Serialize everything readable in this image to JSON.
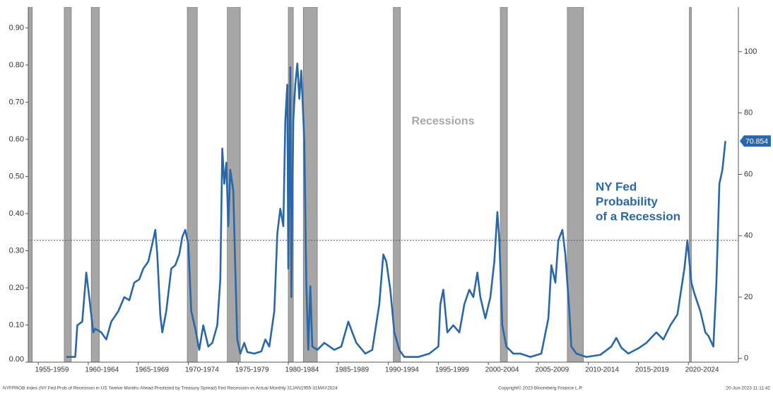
{
  "chart_data": {
    "type": "line",
    "x": [
      1957.8,
      1958.7,
      1958.9,
      1959.4,
      1959.8,
      1960.1,
      1960.5,
      1960.7,
      1961.3,
      1961.8,
      1962.3,
      1963.0,
      1963.6,
      1964.1,
      1964.6,
      1965.1,
      1965.5,
      1966.0,
      1966.4,
      1966.7,
      1966.9,
      1967.2,
      1967.4,
      1967.8,
      1968.3,
      1968.7,
      1969.1,
      1969.4,
      1969.7,
      1970.0,
      1970.3,
      1970.7,
      1971.1,
      1971.5,
      1972.0,
      1972.4,
      1972.9,
      1973.2,
      1973.4,
      1973.6,
      1973.8,
      1974.0,
      1974.2,
      1974.5,
      1974.7,
      1974.9,
      1975.2,
      1975.6,
      1975.9,
      1976.6,
      1977.3,
      1977.7,
      1978.1,
      1978.6,
      1978.9,
      1979.2,
      1979.5,
      1979.7,
      1979.9,
      1980.0,
      1980.2,
      1980.3,
      1980.5,
      1980.7,
      1980.9,
      1981.1,
      1981.3,
      1981.6,
      1981.8,
      1982.0,
      1982.2,
      1982.4,
      1982.9,
      1983.6,
      1984.6,
      1985.3,
      1986.0,
      1986.4,
      1986.8,
      1987.7,
      1988.4,
      1989.1,
      1989.5,
      1989.8,
      1990.2,
      1990.6,
      1991.1,
      1991.6,
      1993.0,
      1994.1,
      1995.0,
      1995.2,
      1995.5,
      1995.9,
      1996.5,
      1997.1,
      1997.6,
      1998.1,
      1998.5,
      1998.9,
      1999.2,
      1999.7,
      2000.2,
      2000.6,
      2000.9,
      2001.1,
      2001.4,
      2001.8,
      2002.5,
      2003.2,
      2004.2,
      2005.3,
      2006.0,
      2006.3,
      2006.7,
      2007.0,
      2007.4,
      2007.7,
      2008.1,
      2008.3,
      2008.8,
      2009.8,
      2011.2,
      2012.3,
      2012.8,
      2013.3,
      2014.0,
      2015.1,
      2015.8,
      2016.8,
      2017.5,
      2018.2,
      2018.9,
      2019.6,
      2019.9,
      2020.3,
      2020.6,
      2021.2,
      2021.7,
      2022.0,
      2022.5,
      2022.8,
      2023.1,
      2023.4,
      2023.7
    ],
    "series": [
      {
        "name": "NY Fed Probability of a Recession",
        "label_lines": [
          "NY Fed",
          "Probability",
          "of a Recession"
        ],
        "color": "#2a67a8",
        "axis": "y2",
        "values": [
          0.5,
          0.5,
          10.8,
          12,
          28,
          20,
          8.5,
          9.7,
          8.5,
          6.2,
          12,
          15.4,
          20,
          19,
          24.7,
          25.8,
          29.3,
          31.6,
          37.3,
          41.9,
          33.9,
          14.3,
          8.5,
          15.4,
          29.3,
          30.4,
          33.9,
          39.6,
          41.9,
          37.3,
          15.4,
          9.7,
          2.8,
          10.8,
          3.9,
          5.1,
          10.8,
          25.8,
          68.4,
          56.9,
          63.8,
          43.1,
          61.5,
          54.6,
          29.3,
          6.2,
          1.6,
          5.1,
          2.1,
          1.6,
          2.3,
          6.2,
          3.9,
          15.4,
          40.8,
          48.8,
          43.1,
          77.6,
          89.2,
          29.3,
          94.9,
          20,
          77.6,
          89.2,
          96.1,
          84.6,
          93.8,
          70.7,
          24.7,
          2.8,
          23.5,
          3.9,
          2.8,
          5.1,
          2.8,
          3.9,
          12,
          8.5,
          5.1,
          1.6,
          2.8,
          17.7,
          33.9,
          31.6,
          22.4,
          8.5,
          2.8,
          0.5,
          0.5,
          1.6,
          3.9,
          17.7,
          22.4,
          8.5,
          10.8,
          8.5,
          17.7,
          22.4,
          20,
          28,
          20,
          13.1,
          20,
          31.6,
          47.7,
          38.5,
          10.8,
          3.9,
          1.6,
          1.6,
          0.5,
          1.6,
          13.1,
          30.4,
          24.7,
          38.5,
          41.9,
          33.9,
          15.4,
          3.9,
          1.6,
          0.5,
          1.2,
          3.9,
          6.7,
          3.5,
          1.6,
          3.5,
          5.1,
          8.5,
          6.2,
          10.8,
          14.3,
          29.3,
          38.5,
          24.7,
          21.2,
          15.4,
          8.5,
          7.4,
          3.9,
          24.7,
          56.9,
          61.5,
          70.854
        ]
      }
    ],
    "recessions_label": "Recessions",
    "recessions": [
      [
        1953.6,
        1954.4
      ],
      [
        1957.6,
        1958.3
      ],
      [
        1960.3,
        1961.1
      ],
      [
        1969.9,
        1970.9
      ],
      [
        1973.9,
        1975.2
      ],
      [
        1980.0,
        1980.5
      ],
      [
        1981.5,
        1982.9
      ],
      [
        1990.5,
        1991.2
      ],
      [
        2001.2,
        2001.9
      ],
      [
        2007.9,
        2009.5
      ],
      [
        2020.1,
        2020.3
      ]
    ],
    "reference_line": {
      "value": 38.5,
      "axis": "y2"
    },
    "xlim": [
      1954,
      2025
    ],
    "xticks": [
      {
        "value": 1955,
        "label": "1955-1959"
      },
      {
        "value": 1960,
        "label": "1960-1964"
      },
      {
        "value": 1965,
        "label": "1965-1969"
      },
      {
        "value": 1970,
        "label": "1970-1974"
      },
      {
        "value": 1975,
        "label": "1975-1979"
      },
      {
        "value": 1980,
        "label": "1980-1984"
      },
      {
        "value": 1985,
        "label": "1985-1989"
      },
      {
        "value": 1990,
        "label": "1990-1994"
      },
      {
        "value": 1995,
        "label": "1995-1999"
      },
      {
        "value": 2000,
        "label": "2000-2004"
      },
      {
        "value": 2005,
        "label": "2005-2009"
      },
      {
        "value": 2010,
        "label": "2010-2014"
      },
      {
        "value": 2015,
        "label": "2015-2019"
      },
      {
        "value": 2020,
        "label": "2020-2024"
      }
    ],
    "ylim": [
      0,
      0.956
    ],
    "yticks": [
      {
        "value": 0,
        "label": "0.00"
      },
      {
        "value": 0.1,
        "label": "0.10"
      },
      {
        "value": 0.2,
        "label": "0.20"
      },
      {
        "value": 0.3,
        "label": "0.30"
      },
      {
        "value": 0.4,
        "label": "0.40"
      },
      {
        "value": 0.5,
        "label": "0.50"
      },
      {
        "value": 0.6,
        "label": "0.60"
      },
      {
        "value": 0.7,
        "label": "0.70"
      },
      {
        "value": 0.8,
        "label": "0.80"
      },
      {
        "value": 0.9,
        "label": "0.90"
      }
    ],
    "y2lim": [
      -1.2,
      114.5
    ],
    "y2ticks": [
      0,
      20,
      40,
      60,
      80,
      100
    ],
    "footer": {
      "source": "NYFPROB Index (NY Fed Prob of Recession in US Twelve Months Ahead Predicted by Treasury Spread) Fed Recession vs Actual  Monthly 31JAN1955-31MAY2024",
      "copyright": "Copyright© 2023 Bloomberg Finance L.P.",
      "timestamp": "20-Jun-2023 11:11:42"
    }
  }
}
